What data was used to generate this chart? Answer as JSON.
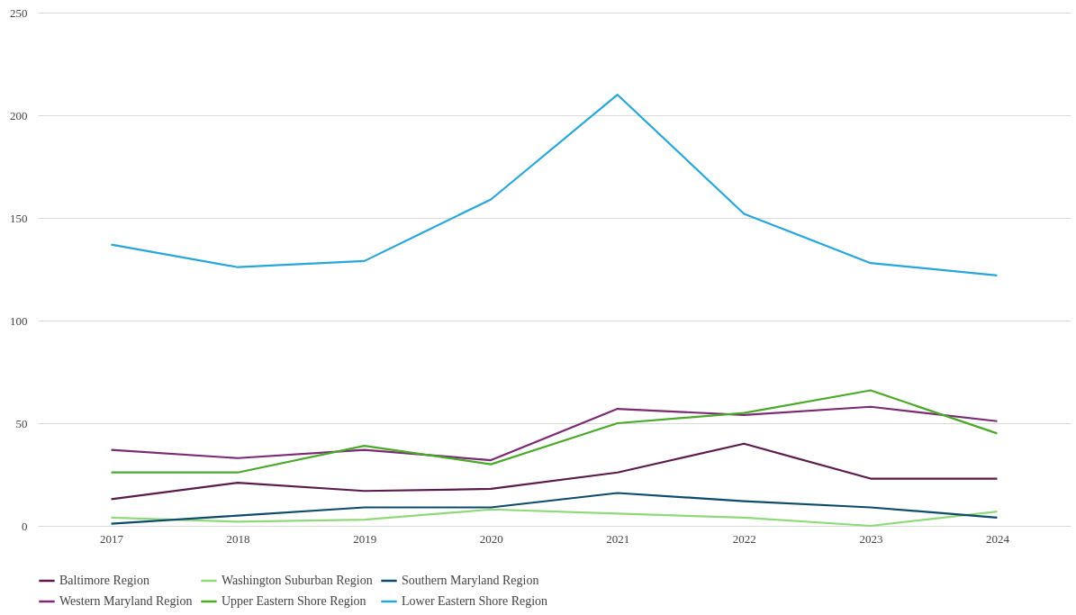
{
  "chart_data": {
    "type": "line",
    "categories": [
      "2017",
      "2018",
      "2019",
      "2020",
      "2021",
      "2022",
      "2023",
      "2024"
    ],
    "series": [
      {
        "name": "Baltimore Region",
        "color": "#5c1a4a",
        "values": [
          13,
          21,
          17,
          18,
          26,
          40,
          23,
          23
        ]
      },
      {
        "name": "Washington Suburban Region",
        "color": "#8fd97a",
        "values": [
          4,
          2,
          3,
          8,
          6,
          4,
          0,
          7
        ]
      },
      {
        "name": "Southern Maryland Region",
        "color": "#0d4a6b",
        "values": [
          1,
          5,
          9,
          9,
          16,
          12,
          9,
          4
        ]
      },
      {
        "name": "Western Maryland Region",
        "color": "#7a2a72",
        "values": [
          37,
          33,
          37,
          32,
          57,
          54,
          58,
          51
        ]
      },
      {
        "name": "Upper Eastern Shore Region",
        "color": "#4aa82a",
        "values": [
          26,
          26,
          39,
          30,
          50,
          55,
          66,
          45
        ]
      },
      {
        "name": "Lower Eastern Shore Region",
        "color": "#27a6dc",
        "values": [
          137,
          126,
          129,
          159,
          210,
          152,
          128,
          122
        ]
      }
    ],
    "ylim": [
      0,
      250
    ],
    "yticks": [
      0,
      50,
      100,
      150,
      200,
      250
    ],
    "grid": "y",
    "legend": "bottom",
    "marker": "none",
    "line_style": "solid"
  }
}
